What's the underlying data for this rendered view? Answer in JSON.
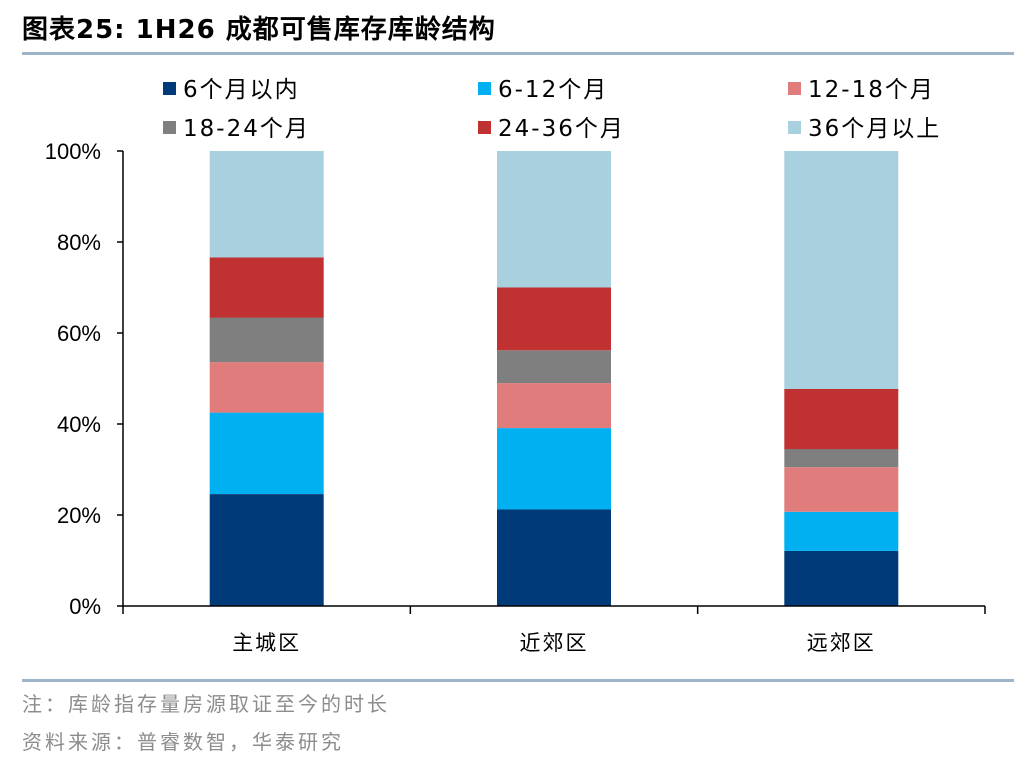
{
  "header": {
    "title": "图表25:  1H26 成都可售库存库龄结构"
  },
  "footer": {
    "note": "注：库龄指存量房源取证至今的时长",
    "source": "资料来源：普睿数智，华泰研究"
  },
  "chart_data": {
    "type": "bar",
    "stacked": true,
    "categories": [
      "主城区",
      "近郊区",
      "远郊区"
    ],
    "ylim": [
      0,
      100
    ],
    "yticks": [
      0,
      20,
      40,
      60,
      80,
      100
    ],
    "ytick_labels": [
      "0%",
      "20%",
      "40%",
      "60%",
      "80%",
      "100%"
    ],
    "legend_position": "top",
    "series": [
      {
        "name": "6个月以内",
        "color": "#003a78",
        "values": [
          24.6,
          21.2,
          12.1
        ]
      },
      {
        "name": "6-12个月",
        "color": "#00b0f0",
        "values": [
          17.9,
          17.9,
          8.6
        ]
      },
      {
        "name": "12-18个月",
        "color": "#e07c7c",
        "values": [
          11.1,
          9.9,
          9.8
        ]
      },
      {
        "name": "18-24个月",
        "color": "#7f7f7f",
        "values": [
          9.8,
          7.2,
          4.0
        ]
      },
      {
        "name": "24-36个月",
        "color": "#c03232",
        "values": [
          13.2,
          13.8,
          13.2
        ]
      },
      {
        "name": "36个月以上",
        "color": "#a8d0de",
        "values": [
          23.4,
          30.0,
          52.3
        ]
      }
    ]
  }
}
